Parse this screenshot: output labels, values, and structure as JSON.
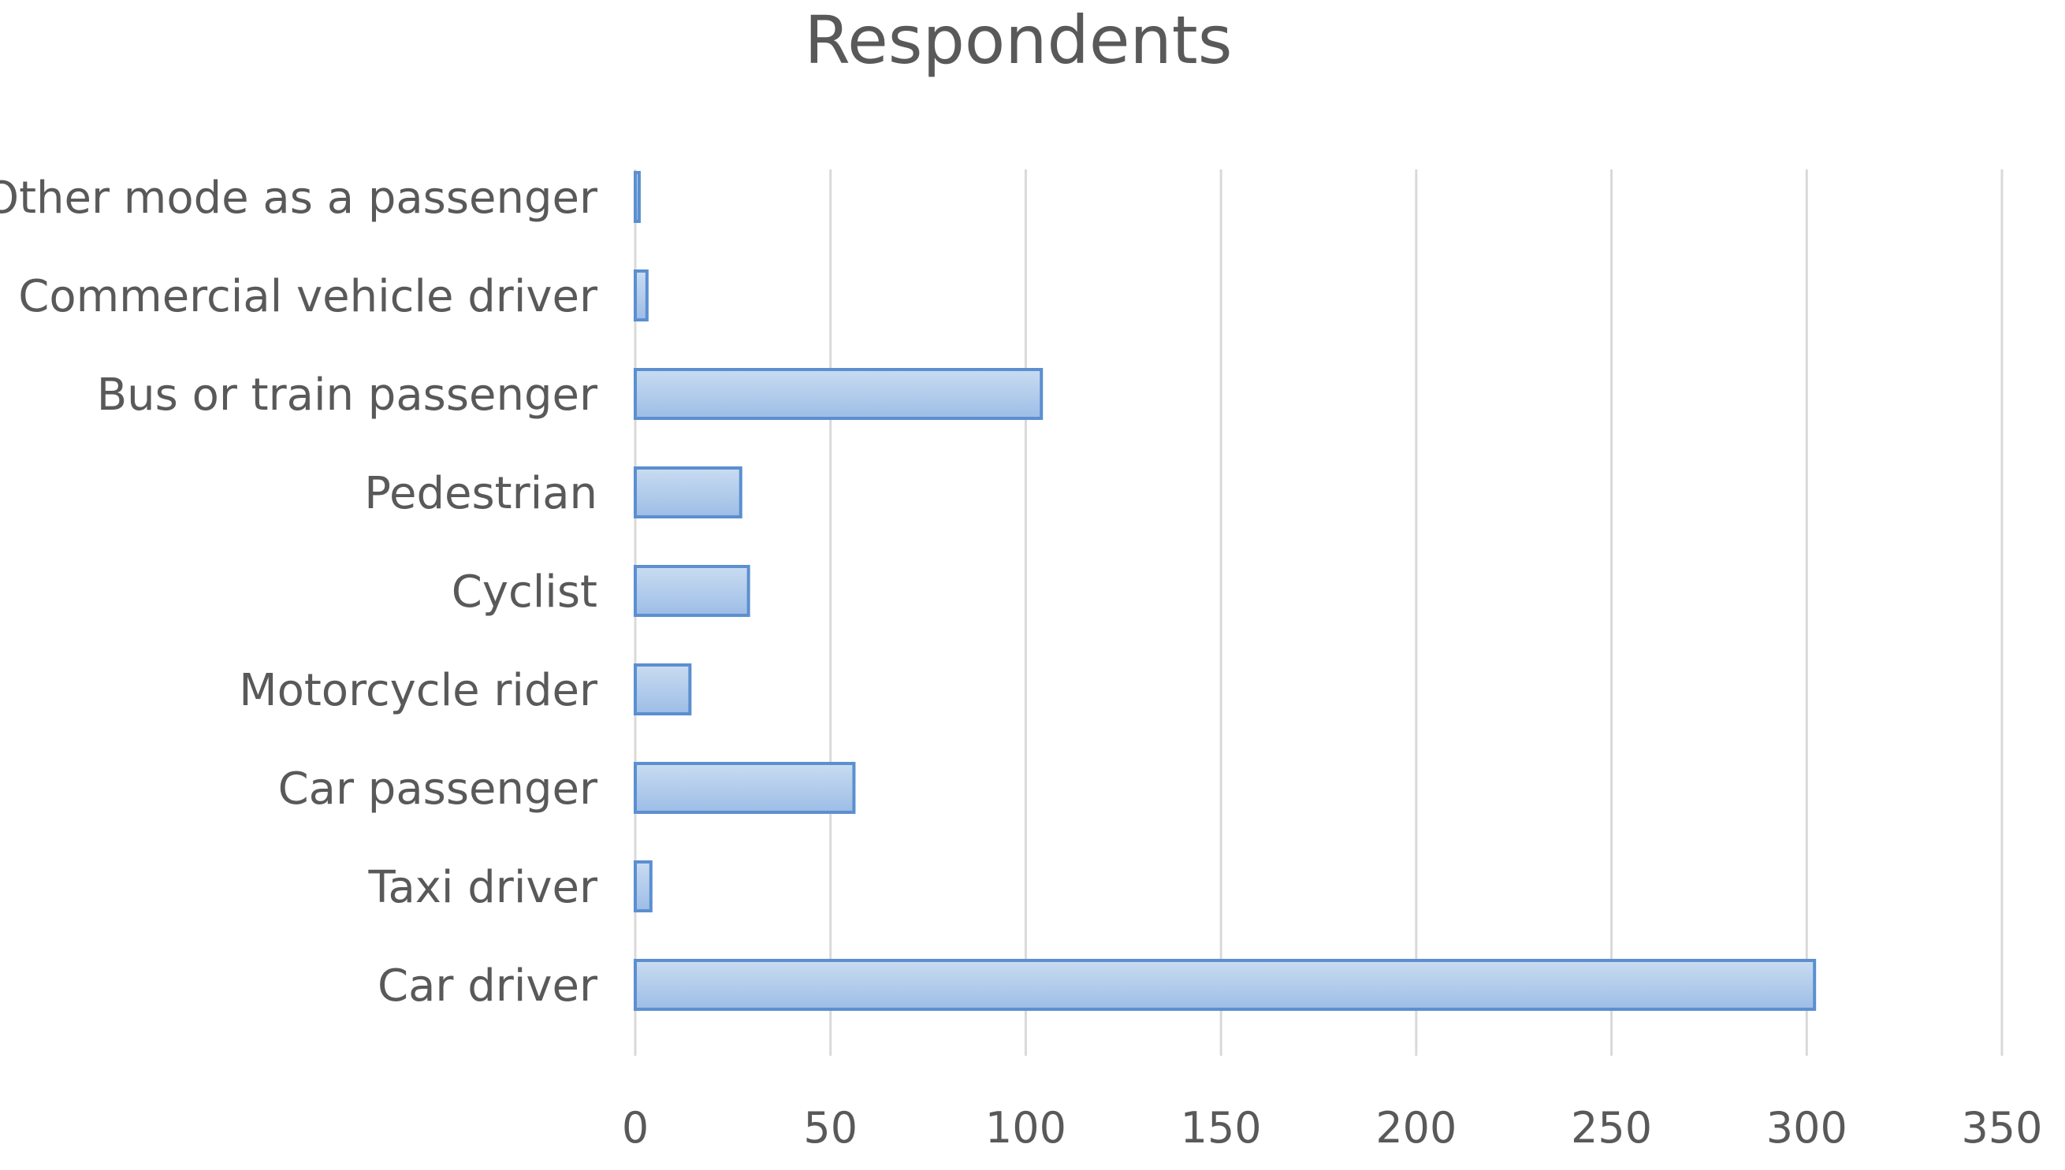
{
  "chart_data": {
    "type": "bar",
    "orientation": "horizontal",
    "title": "Respondents",
    "xlabel": "",
    "ylabel": "",
    "categories": [
      "Car driver",
      "Taxi driver",
      "Car passenger",
      "Motorcycle rider",
      "Cyclist",
      "Pedestrian",
      "Bus or train passenger",
      "Commercial vehicle driver",
      "Other mode as a passenger"
    ],
    "values": [
      302,
      4,
      56,
      14,
      29,
      27,
      104,
      3,
      1
    ],
    "xlim": [
      0,
      350
    ],
    "xticks": [
      0,
      50,
      100,
      150,
      200,
      250,
      300,
      350
    ],
    "grid": true,
    "legend": "none",
    "colors": {
      "bar_fill_light": "#c9dcf1",
      "bar_fill_dark": "#9dbde6",
      "bar_stroke": "#5b8fd0",
      "gridline": "#d9d9d9",
      "text": "#595959"
    }
  }
}
